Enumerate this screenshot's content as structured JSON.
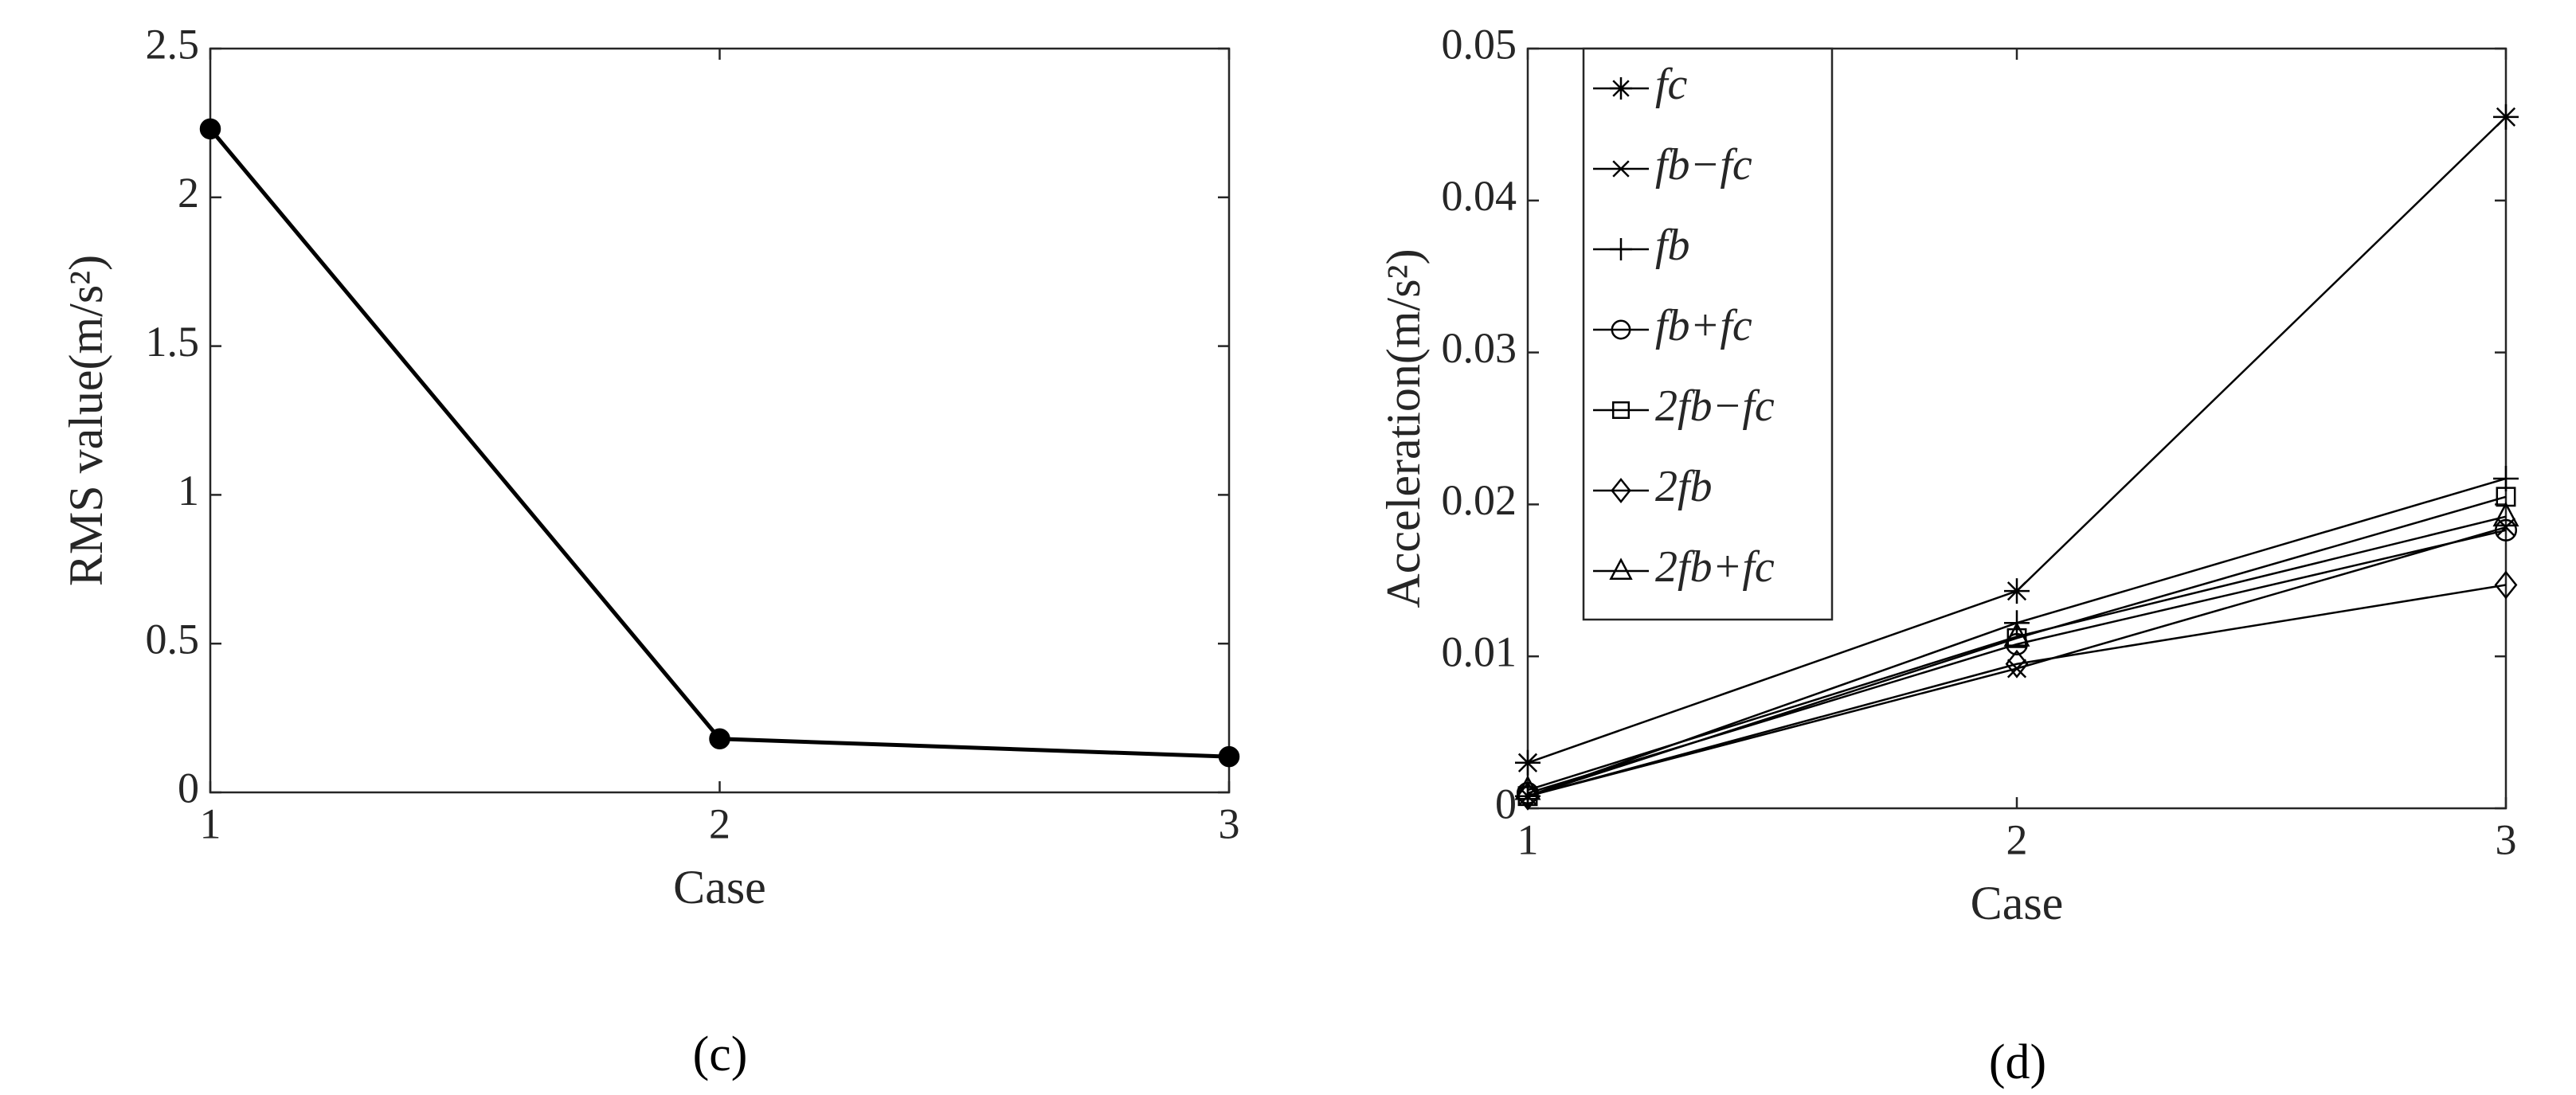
{
  "chart_data": [
    {
      "type": "line",
      "sublabel": "(c)",
      "xlabel": "Case",
      "ylabel": "RMS value(m/s²)",
      "x": [
        1,
        2,
        3
      ],
      "xlim": [
        1,
        3
      ],
      "xticks": [
        1,
        2,
        3
      ],
      "ylim": [
        0,
        2.5
      ],
      "yticks": [
        0,
        0.5,
        1,
        1.5,
        2,
        2.5
      ],
      "grid": false,
      "series": [
        {
          "name": null,
          "color": "#000000",
          "marker": "dot",
          "values": [
            2.23,
            0.18,
            0.12
          ]
        }
      ]
    },
    {
      "type": "line",
      "sublabel": "(d)",
      "xlabel": "Case",
      "ylabel": "Acceleration(m/s²)",
      "x": [
        1,
        2,
        3
      ],
      "xlim": [
        1,
        3
      ],
      "xticks": [
        1,
        2,
        3
      ],
      "ylim": [
        0,
        0.05
      ],
      "yticks": [
        0,
        0.01,
        0.02,
        0.03,
        0.04,
        0.05
      ],
      "grid": false,
      "legend": "upper left",
      "series": [
        {
          "name": "fc",
          "color": "#000000",
          "marker": "asterisk",
          "values": [
            0.003,
            0.0143,
            0.0455
          ]
        },
        {
          "name": "fb−fc",
          "color": "#000000",
          "marker": "x",
          "values": [
            0.0008,
            0.0092,
            0.0185
          ]
        },
        {
          "name": "fb",
          "color": "#000000",
          "marker": "plus",
          "values": [
            0.0008,
            0.0122,
            0.0217
          ]
        },
        {
          "name": "fb+fc",
          "color": "#000000",
          "marker": "circle",
          "values": [
            0.001,
            0.0108,
            0.0183
          ]
        },
        {
          "name": "2fb−fc",
          "color": "#000000",
          "marker": "square",
          "values": [
            0.0008,
            0.0112,
            0.0205
          ]
        },
        {
          "name": "2fb",
          "color": "#000000",
          "marker": "diamond",
          "values": [
            0.0008,
            0.0095,
            0.0147
          ]
        },
        {
          "name": "2fb+fc",
          "color": "#000000",
          "marker": "triangle",
          "values": [
            0.0012,
            0.0113,
            0.0192
          ]
        }
      ]
    }
  ]
}
